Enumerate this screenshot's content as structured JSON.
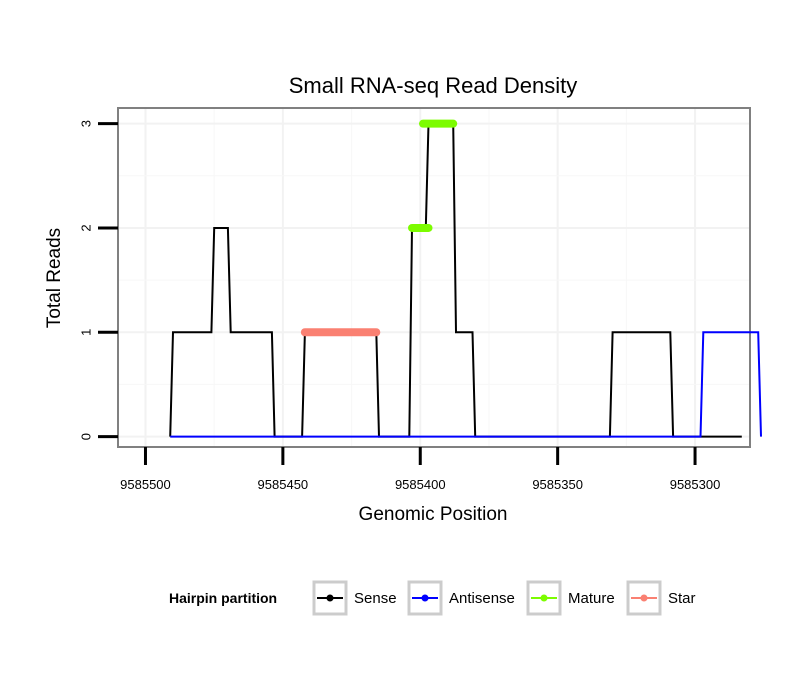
{
  "chart_data": {
    "type": "line",
    "title": "Small RNA-seq Read Density",
    "xlabel": "Genomic Position",
    "ylabel": "Total Reads",
    "xlim": [
      9585510,
      9585280
    ],
    "x_reversed": true,
    "ylim": [
      -0.1,
      3.15
    ],
    "x_ticks": [
      9585500,
      9585450,
      9585400,
      9585350,
      9585300
    ],
    "y_ticks": [
      0,
      1,
      2,
      3
    ],
    "grid": true,
    "legend": {
      "title": "Hairpin partition",
      "placement": "bottom",
      "entries": [
        {
          "name": "Sense",
          "color": "#000000"
        },
        {
          "name": "Antisense",
          "color": "#0000ff"
        },
        {
          "name": "Mature",
          "color": "#7cfc00"
        },
        {
          "name": "Star",
          "color": "#fa8072"
        }
      ]
    },
    "series": [
      {
        "name": "Sense",
        "color": "#000000",
        "style": "line",
        "x": [
          9585491,
          9585490,
          9585476,
          9585475,
          9585470,
          9585469,
          9585464,
          9585463,
          9585454,
          9585453,
          9585443,
          9585442,
          9585416,
          9585415,
          9585404,
          9585403,
          9585398,
          9585397,
          9585388,
          9585387,
          9585381,
          9585380,
          9585364,
          9585363,
          9585331,
          9585330,
          9585309,
          9585308,
          9585283
        ],
        "y": [
          0,
          1,
          1,
          2,
          2,
          1,
          1,
          1,
          1,
          0,
          0,
          1,
          1,
          0,
          0,
          2,
          2,
          3,
          3,
          1,
          1,
          0,
          0,
          0,
          0,
          1,
          1,
          0,
          0
        ]
      },
      {
        "name": "Antisense",
        "color": "#0000ff",
        "style": "line",
        "x": [
          9585491,
          9585298,
          9585297,
          9585277,
          9585276
        ],
        "y": [
          0,
          0,
          1,
          1,
          0
        ]
      },
      {
        "name": "Mature",
        "color": "#7cfc00",
        "style": "segment",
        "segments": [
          {
            "x": [
              9585403,
              9585397
            ],
            "y": 2
          },
          {
            "x": [
              9585399,
              9585388
            ],
            "y": 3
          }
        ]
      },
      {
        "name": "Star",
        "color": "#fa8072",
        "style": "segment",
        "segments": [
          {
            "x": [
              9585442,
              9585416
            ],
            "y": 1
          }
        ]
      }
    ]
  }
}
